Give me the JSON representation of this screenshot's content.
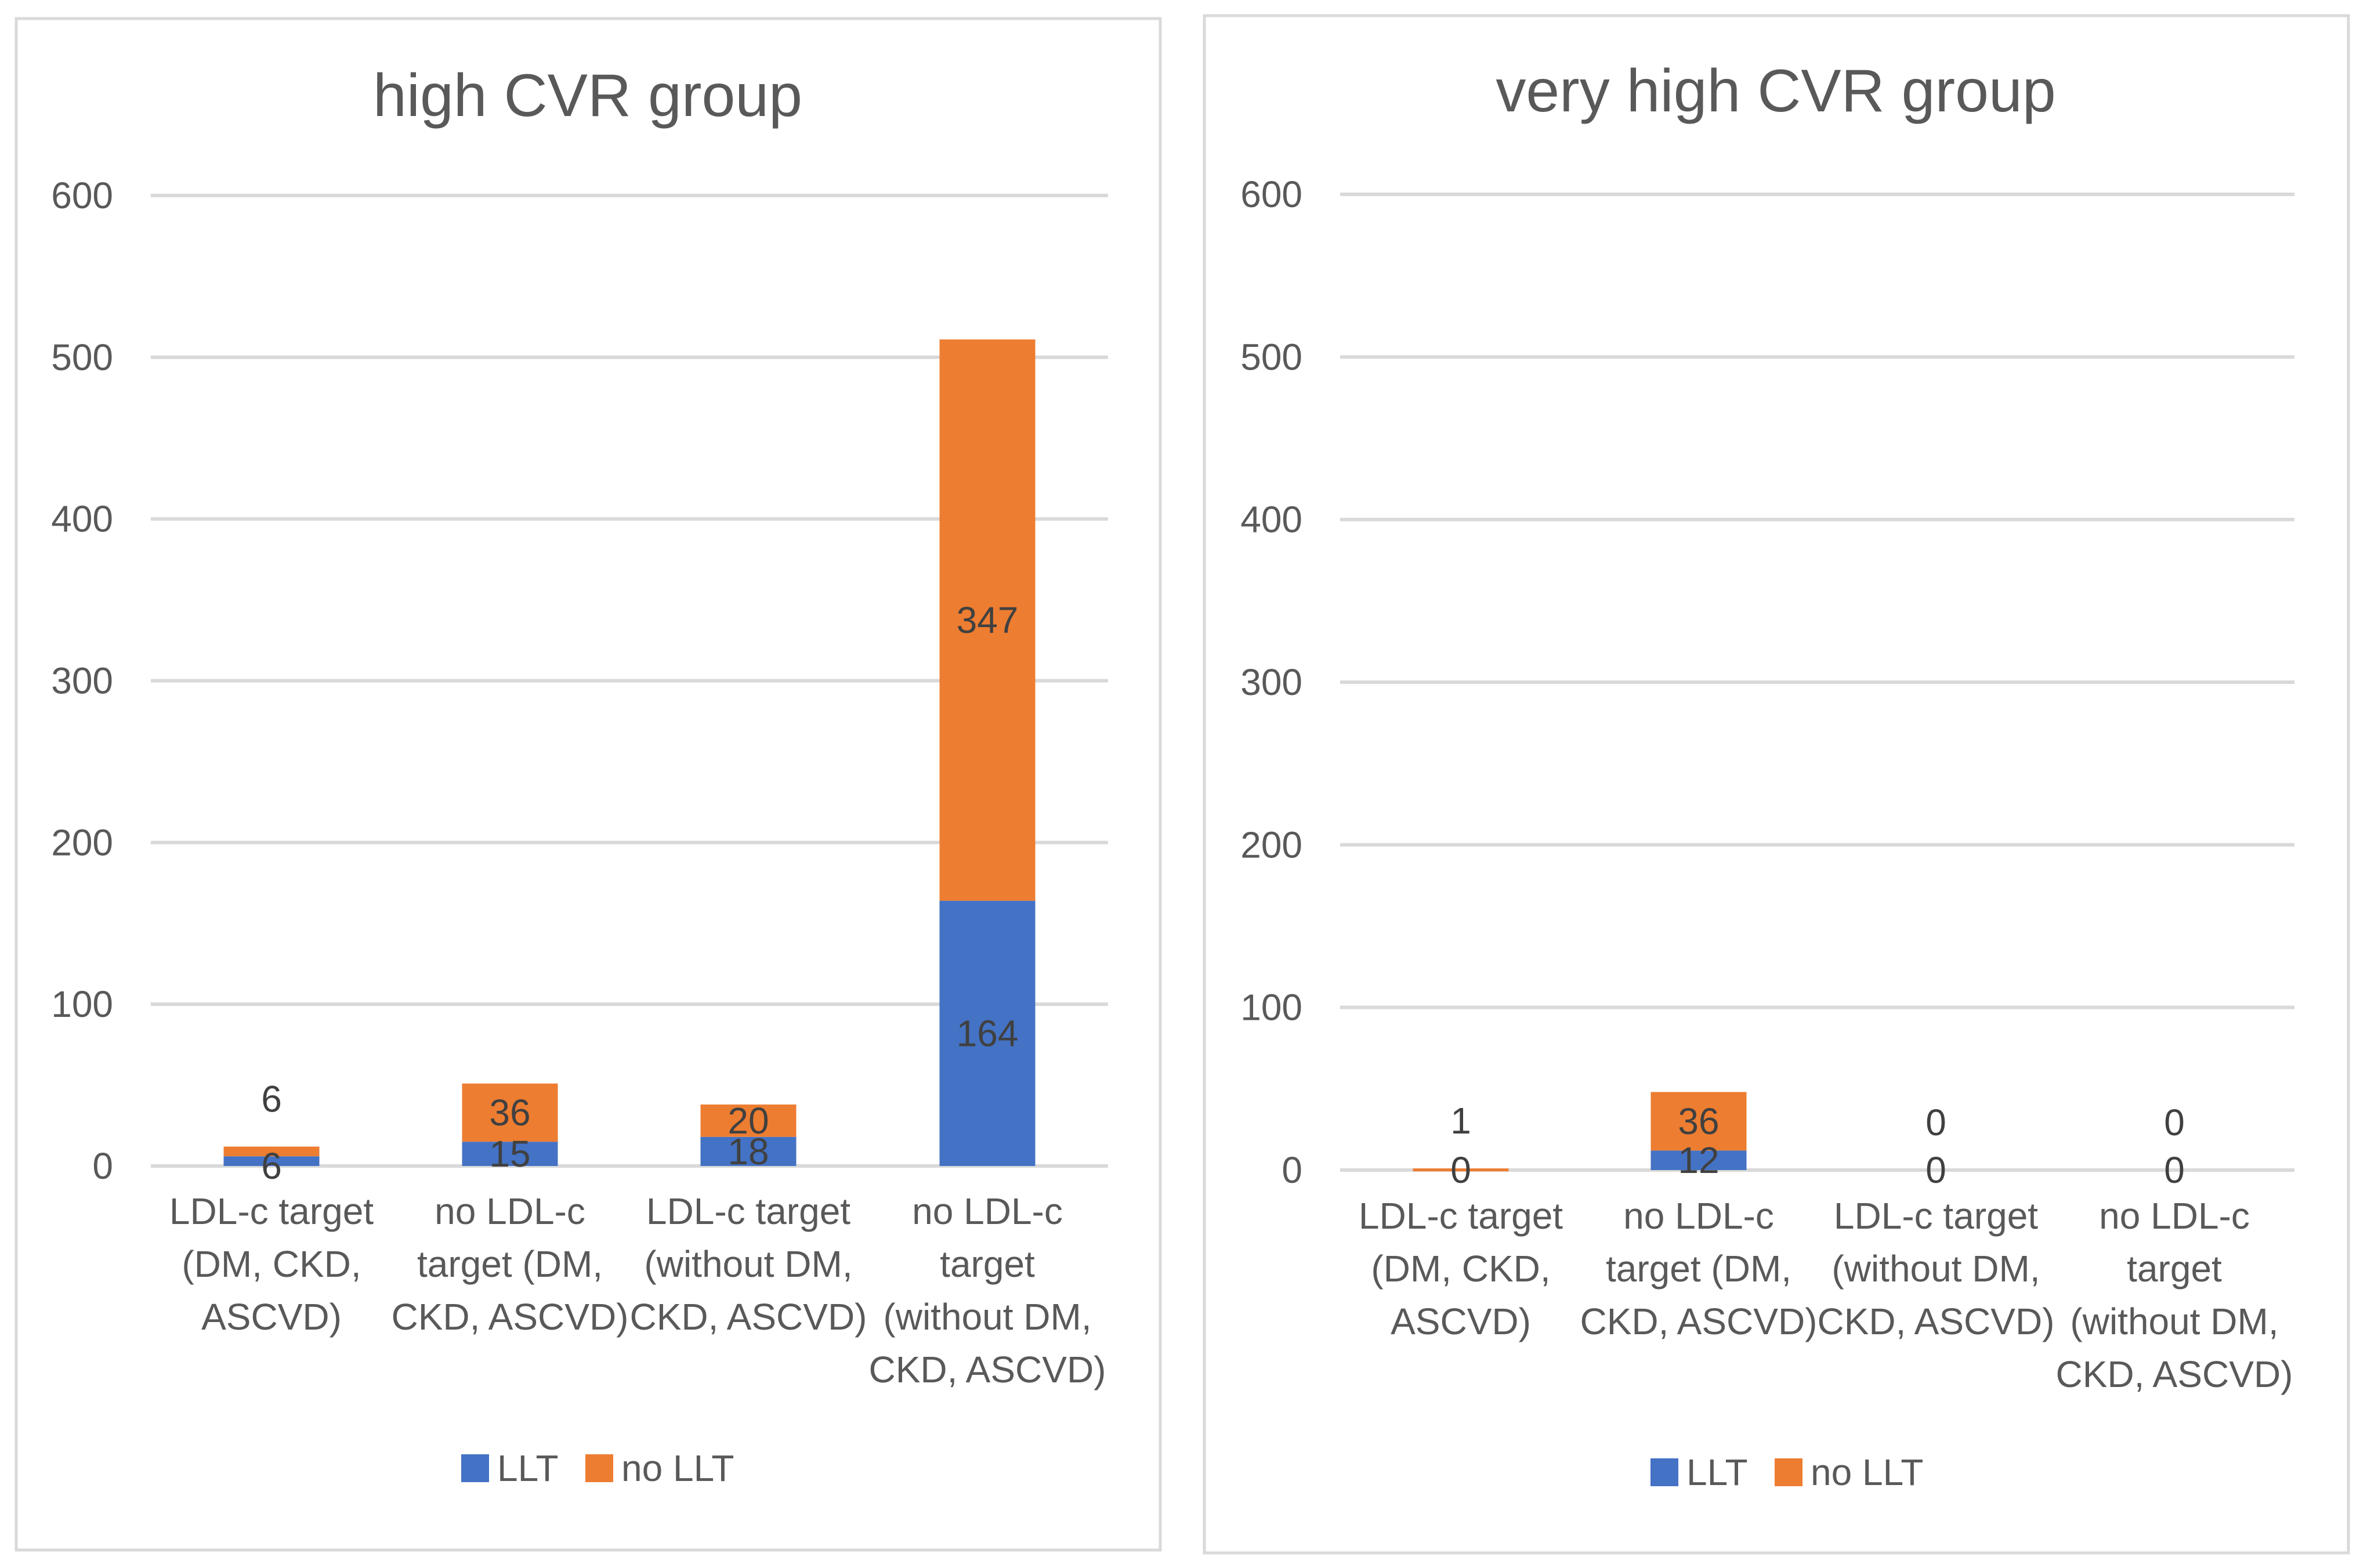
{
  "chart_data": [
    {
      "type": "bar",
      "stacked": true,
      "title": "high CVR group",
      "categories": [
        [
          "LDL-c target",
          "(DM, CKD,",
          "ASCVD)"
        ],
        [
          "no LDL-c",
          "target (DM,",
          "CKD, ASCVD)"
        ],
        [
          "LDL-c target",
          "(without DM,",
          "CKD, ASCVD)"
        ],
        [
          "no LDL-c",
          "target",
          "(without DM,",
          "CKD, ASCVD)"
        ]
      ],
      "series": [
        {
          "name": "LLT",
          "color": "#4472C4",
          "values": [
            6,
            15,
            18,
            164
          ]
        },
        {
          "name": "no LLT",
          "color": "#ED7D31",
          "values": [
            6,
            36,
            20,
            347
          ]
        }
      ],
      "ylim": [
        0,
        600
      ],
      "yticks": [
        "0",
        "100",
        "200",
        "300",
        "400",
        "500",
        "600"
      ],
      "grid": true,
      "legend": "bottom"
    },
    {
      "type": "bar",
      "stacked": true,
      "title": "very high CVR group",
      "categories": [
        [
          "LDL-c target",
          "(DM, CKD,",
          "ASCVD)"
        ],
        [
          "no LDL-c",
          "target (DM,",
          "CKD, ASCVD)"
        ],
        [
          "LDL-c target",
          "(without DM,",
          "CKD, ASCVD)"
        ],
        [
          "no LDL-c",
          "target",
          "(without DM,",
          "CKD, ASCVD)"
        ]
      ],
      "series": [
        {
          "name": "LLT",
          "color": "#4472C4",
          "values": [
            0,
            12,
            0,
            0
          ]
        },
        {
          "name": "no LLT",
          "color": "#ED7D31",
          "values": [
            1,
            36,
            0,
            0
          ]
        }
      ],
      "ylim": [
        0,
        600
      ],
      "yticks": [
        "0",
        "100",
        "200",
        "300",
        "400",
        "500",
        "600"
      ],
      "grid": true,
      "legend": "bottom"
    }
  ]
}
